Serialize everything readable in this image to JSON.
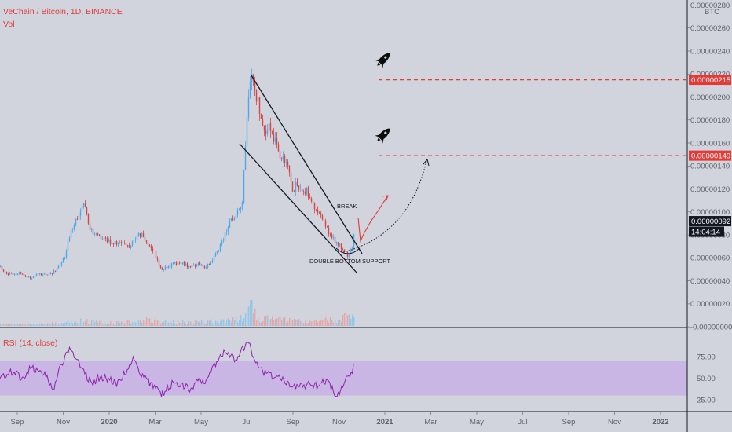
{
  "header": {
    "title": "VeChain / Bitcoin, 1D, BINANCE",
    "volume_label": "Vol"
  },
  "rsi": {
    "label": "RSI (14, close)",
    "band_upper": 70,
    "band_lower": 30,
    "ticks": [
      "75.00",
      "50.00",
      "25.00"
    ],
    "tick_values": [
      75,
      50,
      25
    ]
  },
  "chart_data": {
    "type": "candlestick",
    "symbol": "VET/BTC",
    "interval": "1D",
    "exchange": "BINANCE",
    "currency_label": "BTC",
    "ylim": [
      -4e-08,
      2.81e-06
    ],
    "y_ticks": [
      {
        "v": 2.8e-06,
        "label": "0.00000280"
      },
      {
        "v": 2.6e-06,
        "label": "0.00000260"
      },
      {
        "v": 2.4e-06,
        "label": "0.00000240"
      },
      {
        "v": 2.2e-06,
        "label": "0.00000220"
      },
      {
        "v": 2e-06,
        "label": "0.00000200"
      },
      {
        "v": 1.8e-06,
        "label": "0.00000180"
      },
      {
        "v": 1.6e-06,
        "label": "0.00000160"
      },
      {
        "v": 1.4e-06,
        "label": "0.00000140"
      },
      {
        "v": 1.2e-06,
        "label": "0.00000120"
      },
      {
        "v": 1e-06,
        "label": "0.00000100"
      },
      {
        "v": 8e-07,
        "label": "0.00000080"
      },
      {
        "v": 6e-07,
        "label": "0.00000060"
      },
      {
        "v": 4e-07,
        "label": "0.00000040"
      },
      {
        "v": 2e-07,
        "label": "0.00000020"
      },
      {
        "v": 0.0,
        "label": "-0.00000000"
      }
    ],
    "x_ticks": [
      "Sep",
      "Nov",
      "2020",
      "Mar",
      "May",
      "Jul",
      "Sep",
      "Nov",
      "2021",
      "Mar",
      "May",
      "Jul",
      "Sep",
      "Nov",
      "2022"
    ],
    "bold_ticks": [
      "2020",
      "2021",
      "2022"
    ],
    "price_anchors": [
      [
        0,
        5.2e-07
      ],
      [
        10,
        4.6e-07
      ],
      [
        25,
        4.7e-07
      ],
      [
        35,
        4.3e-07
      ],
      [
        48,
        4.5e-07
      ],
      [
        60,
        4.6e-07
      ],
      [
        70,
        4.8e-07
      ],
      [
        82,
        6e-07
      ],
      [
        90,
        8.5e-07
      ],
      [
        97,
        9.5e-07
      ],
      [
        103,
        1.02e-06
      ],
      [
        107,
        1.05e-06
      ],
      [
        112,
        9e-07
      ],
      [
        118,
        8e-07
      ],
      [
        128,
        7.8e-07
      ],
      [
        140,
        7.4e-07
      ],
      [
        155,
        7.2e-07
      ],
      [
        165,
        7e-07
      ],
      [
        172,
        7.8e-07
      ],
      [
        180,
        8e-07
      ],
      [
        188,
        7.2e-07
      ],
      [
        196,
        6.5e-07
      ],
      [
        204,
        5e-07
      ],
      [
        212,
        5.2e-07
      ],
      [
        222,
        5.5e-07
      ],
      [
        232,
        5.6e-07
      ],
      [
        242,
        5.2e-07
      ],
      [
        252,
        5.5e-07
      ],
      [
        262,
        5.2e-07
      ],
      [
        270,
        5.8e-07
      ],
      [
        278,
        6.8e-07
      ],
      [
        286,
        8e-07
      ],
      [
        292,
        9.2e-07
      ],
      [
        300,
        9.5e-07
      ],
      [
        308,
        1.1e-06
      ],
      [
        312,
        1.55e-06
      ],
      [
        316,
        2.05e-06
      ],
      [
        320,
        2.2e-06
      ],
      [
        326,
        2e-06
      ],
      [
        332,
        1.85e-06
      ],
      [
        338,
        1.68e-06
      ],
      [
        344,
        1.75e-06
      ],
      [
        350,
        1.6e-06
      ],
      [
        356,
        1.5e-06
      ],
      [
        362,
        1.42e-06
      ],
      [
        368,
        1.35e-06
      ],
      [
        372,
        1.18e-06
      ],
      [
        378,
        1.25e-06
      ],
      [
        384,
        1.15e-06
      ],
      [
        390,
        1.2e-06
      ],
      [
        396,
        1.1e-06
      ],
      [
        402,
        1e-06
      ],
      [
        408,
        9.5e-07
      ],
      [
        414,
        8.8e-07
      ],
      [
        420,
        8e-07
      ],
      [
        426,
        7.5e-07
      ],
      [
        432,
        7e-07
      ],
      [
        438,
        6.5e-07
      ],
      [
        444,
        6.2e-07
      ],
      [
        448,
        6.8e-07
      ],
      [
        451,
        8.8e-07
      ]
    ],
    "volume_anchors": [
      [
        0,
        0.04
      ],
      [
        60,
        0.05
      ],
      [
        90,
        0.09
      ],
      [
        100,
        0.12
      ],
      [
        150,
        0.08
      ],
      [
        190,
        0.14
      ],
      [
        240,
        0.08
      ],
      [
        290,
        0.14
      ],
      [
        310,
        0.18
      ],
      [
        318,
        0.45
      ],
      [
        330,
        0.18
      ],
      [
        380,
        0.12
      ],
      [
        430,
        0.14
      ],
      [
        451,
        0.4
      ]
    ],
    "rsi_anchors": [
      [
        0,
        50
      ],
      [
        8,
        55
      ],
      [
        18,
        58
      ],
      [
        28,
        48
      ],
      [
        38,
        62
      ],
      [
        48,
        60
      ],
      [
        58,
        52
      ],
      [
        68,
        38
      ],
      [
        76,
        60
      ],
      [
        82,
        72
      ],
      [
        88,
        83
      ],
      [
        94,
        76
      ],
      [
        100,
        70
      ],
      [
        108,
        54
      ],
      [
        118,
        45
      ],
      [
        128,
        52
      ],
      [
        140,
        48
      ],
      [
        150,
        44
      ],
      [
        160,
        58
      ],
      [
        170,
        72
      ],
      [
        180,
        55
      ],
      [
        190,
        45
      ],
      [
        200,
        40
      ],
      [
        205,
        30
      ],
      [
        212,
        38
      ],
      [
        222,
        45
      ],
      [
        232,
        42
      ],
      [
        242,
        38
      ],
      [
        252,
        48
      ],
      [
        262,
        45
      ],
      [
        270,
        60
      ],
      [
        278,
        74
      ],
      [
        286,
        82
      ],
      [
        294,
        78
      ],
      [
        302,
        70
      ],
      [
        310,
        85
      ],
      [
        316,
        90
      ],
      [
        322,
        78
      ],
      [
        330,
        65
      ],
      [
        338,
        55
      ],
      [
        344,
        58
      ],
      [
        350,
        46
      ],
      [
        356,
        52
      ],
      [
        364,
        45
      ],
      [
        372,
        38
      ],
      [
        380,
        45
      ],
      [
        388,
        40
      ],
      [
        396,
        44
      ],
      [
        404,
        40
      ],
      [
        412,
        48
      ],
      [
        420,
        45
      ],
      [
        426,
        28
      ],
      [
        432,
        34
      ],
      [
        438,
        45
      ],
      [
        444,
        52
      ],
      [
        451,
        63
      ]
    ],
    "current_price": 9.2e-07,
    "current_price_label": "0.00000092",
    "countdown": "14:04:14",
    "targets": [
      {
        "value": 2.15e-06,
        "label": "0.00000215"
      },
      {
        "value": 1.49e-06,
        "label": "0.00000149"
      }
    ],
    "annotations": {
      "break_text": "BREAK",
      "support_text": "DOUBLE BOTTOM SUPPORT"
    }
  },
  "colors": {
    "background": "#d1d4dc",
    "up": "#4ea7e8",
    "down": "#d64545",
    "rsi_line": "#8e24aa",
    "rsi_band": "#c9b6e4",
    "target_line": "#e53935",
    "axis_text": "#5d606b"
  }
}
